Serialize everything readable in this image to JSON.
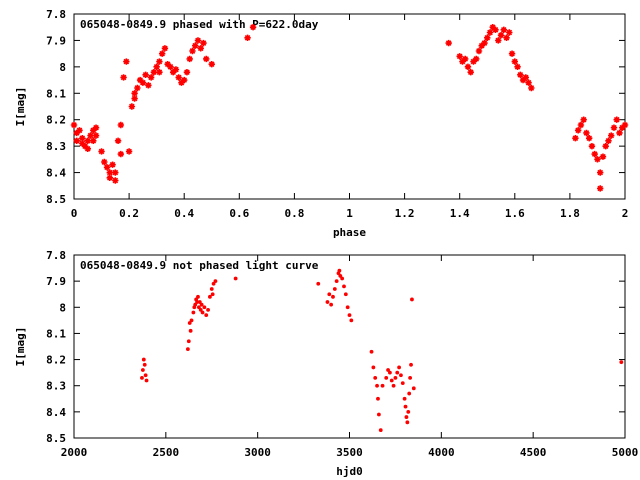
{
  "colors": {
    "points": "#ff0000",
    "frame": "#000000",
    "background": "#ffffff"
  },
  "chart_data": [
    {
      "type": "scatter",
      "title": "065048-0849.9 phased with P=622.0day",
      "xlabel": "phase",
      "ylabel": "I[mag]",
      "xlim": [
        0,
        2
      ],
      "ylim": [
        8.5,
        7.8
      ],
      "y_inverted": true,
      "grid": false,
      "xticks": [
        "0",
        "0.2",
        "0.4",
        "0.6",
        "0.8",
        "1",
        "1.2",
        "1.4",
        "1.6",
        "1.8",
        "2"
      ],
      "yticks": [
        "7.8",
        "7.9",
        "8",
        "8.1",
        "8.2",
        "8.3",
        "8.4",
        "8.5"
      ],
      "marker": "star",
      "points": [
        [
          0.0,
          8.22
        ],
        [
          0.01,
          8.25
        ],
        [
          0.01,
          8.28
        ],
        [
          0.02,
          8.24
        ],
        [
          0.03,
          8.27
        ],
        [
          0.03,
          8.29
        ],
        [
          0.04,
          8.3
        ],
        [
          0.05,
          8.28
        ],
        [
          0.05,
          8.31
        ],
        [
          0.06,
          8.26
        ],
        [
          0.07,
          8.24
        ],
        [
          0.07,
          8.28
        ],
        [
          0.08,
          8.23
        ],
        [
          0.08,
          8.26
        ],
        [
          0.1,
          8.32
        ],
        [
          0.11,
          8.36
        ],
        [
          0.12,
          8.38
        ],
        [
          0.13,
          8.4
        ],
        [
          0.13,
          8.42
        ],
        [
          0.14,
          8.37
        ],
        [
          0.15,
          8.43
        ],
        [
          0.15,
          8.4
        ],
        [
          0.16,
          8.28
        ],
        [
          0.17,
          8.22
        ],
        [
          0.17,
          8.33
        ],
        [
          0.18,
          8.04
        ],
        [
          0.19,
          7.98
        ],
        [
          0.2,
          8.32
        ],
        [
          0.21,
          8.15
        ],
        [
          0.22,
          8.12
        ],
        [
          0.22,
          8.1
        ],
        [
          0.23,
          8.08
        ],
        [
          0.24,
          8.05
        ],
        [
          0.25,
          8.06
        ],
        [
          0.26,
          8.03
        ],
        [
          0.27,
          8.07
        ],
        [
          0.28,
          8.04
        ],
        [
          0.29,
          8.02
        ],
        [
          0.3,
          8.0
        ],
        [
          0.31,
          7.98
        ],
        [
          0.31,
          8.02
        ],
        [
          0.32,
          7.95
        ],
        [
          0.33,
          7.93
        ],
        [
          0.34,
          7.99
        ],
        [
          0.35,
          8.0
        ],
        [
          0.36,
          8.02
        ],
        [
          0.37,
          8.01
        ],
        [
          0.38,
          8.04
        ],
        [
          0.39,
          8.06
        ],
        [
          0.4,
          8.05
        ],
        [
          0.41,
          8.02
        ],
        [
          0.42,
          7.97
        ],
        [
          0.43,
          7.94
        ],
        [
          0.44,
          7.92
        ],
        [
          0.45,
          7.9
        ],
        [
          0.46,
          7.93
        ],
        [
          0.47,
          7.91
        ],
        [
          0.48,
          7.97
        ],
        [
          0.5,
          7.99
        ],
        [
          0.63,
          7.89
        ],
        [
          0.65,
          7.85
        ],
        [
          1.36,
          7.91
        ],
        [
          1.4,
          7.96
        ],
        [
          1.41,
          7.98
        ],
        [
          1.42,
          7.97
        ],
        [
          1.43,
          8.0
        ],
        [
          1.44,
          8.02
        ],
        [
          1.45,
          7.98
        ],
        [
          1.46,
          7.97
        ],
        [
          1.47,
          7.94
        ],
        [
          1.48,
          7.92
        ],
        [
          1.49,
          7.91
        ],
        [
          1.5,
          7.89
        ],
        [
          1.51,
          7.87
        ],
        [
          1.52,
          7.85
        ],
        [
          1.53,
          7.86
        ],
        [
          1.54,
          7.9
        ],
        [
          1.55,
          7.88
        ],
        [
          1.56,
          7.86
        ],
        [
          1.57,
          7.89
        ],
        [
          1.58,
          7.87
        ],
        [
          1.59,
          7.95
        ],
        [
          1.6,
          7.98
        ],
        [
          1.61,
          8.0
        ],
        [
          1.62,
          8.03
        ],
        [
          1.63,
          8.05
        ],
        [
          1.64,
          8.04
        ],
        [
          1.65,
          8.06
        ],
        [
          1.66,
          8.08
        ],
        [
          1.82,
          8.27
        ],
        [
          1.83,
          8.24
        ],
        [
          1.84,
          8.22
        ],
        [
          1.85,
          8.2
        ],
        [
          1.86,
          8.25
        ],
        [
          1.87,
          8.27
        ],
        [
          1.88,
          8.3
        ],
        [
          1.89,
          8.33
        ],
        [
          1.9,
          8.35
        ],
        [
          1.91,
          8.4
        ],
        [
          1.91,
          8.46
        ],
        [
          1.92,
          8.34
        ],
        [
          1.93,
          8.3
        ],
        [
          1.94,
          8.28
        ],
        [
          1.95,
          8.26
        ],
        [
          1.96,
          8.23
        ],
        [
          1.97,
          8.2
        ],
        [
          1.98,
          8.25
        ],
        [
          1.99,
          8.23
        ],
        [
          2.0,
          8.22
        ]
      ]
    },
    {
      "type": "scatter",
      "title": "065048-0849.9 not phased light curve",
      "xlabel": "hjd0",
      "ylabel": "I[mag]",
      "xlim": [
        2000,
        5000
      ],
      "ylim": [
        8.5,
        7.8
      ],
      "y_inverted": true,
      "grid": false,
      "xticks": [
        "2000",
        "2500",
        "3000",
        "3500",
        "4000",
        "4500",
        "5000"
      ],
      "yticks": [
        "7.8",
        "7.9",
        "8",
        "8.1",
        "8.2",
        "8.3",
        "8.4",
        "8.5"
      ],
      "marker": "dot",
      "points": [
        [
          2370,
          8.27
        ],
        [
          2375,
          8.24
        ],
        [
          2380,
          8.2
        ],
        [
          2385,
          8.22
        ],
        [
          2390,
          8.26
        ],
        [
          2395,
          8.28
        ],
        [
          2620,
          8.16
        ],
        [
          2625,
          8.13
        ],
        [
          2630,
          8.06
        ],
        [
          2635,
          8.09
        ],
        [
          2640,
          8.05
        ],
        [
          2650,
          8.02
        ],
        [
          2655,
          8.0
        ],
        [
          2660,
          7.99
        ],
        [
          2665,
          7.97
        ],
        [
          2670,
          7.98
        ],
        [
          2675,
          7.96
        ],
        [
          2680,
          8.0
        ],
        [
          2685,
          7.98
        ],
        [
          2690,
          8.01
        ],
        [
          2695,
          7.99
        ],
        [
          2700,
          8.02
        ],
        [
          2710,
          8.0
        ],
        [
          2720,
          8.03
        ],
        [
          2730,
          8.01
        ],
        [
          2740,
          7.96
        ],
        [
          2750,
          7.93
        ],
        [
          2755,
          7.95
        ],
        [
          2760,
          7.91
        ],
        [
          2770,
          7.9
        ],
        [
          2880,
          7.89
        ],
        [
          3330,
          7.91
        ],
        [
          3380,
          7.98
        ],
        [
          3390,
          7.95
        ],
        [
          3400,
          7.99
        ],
        [
          3410,
          7.96
        ],
        [
          3420,
          7.93
        ],
        [
          3430,
          7.9
        ],
        [
          3440,
          7.87
        ],
        [
          3445,
          7.86
        ],
        [
          3450,
          7.88
        ],
        [
          3460,
          7.89
        ],
        [
          3470,
          7.92
        ],
        [
          3480,
          7.95
        ],
        [
          3490,
          8.0
        ],
        [
          3500,
          8.03
        ],
        [
          3510,
          8.05
        ],
        [
          3620,
          8.17
        ],
        [
          3630,
          8.23
        ],
        [
          3640,
          8.27
        ],
        [
          3650,
          8.3
        ],
        [
          3655,
          8.35
        ],
        [
          3660,
          8.41
        ],
        [
          3670,
          8.47
        ],
        [
          3680,
          8.3
        ],
        [
          3700,
          8.27
        ],
        [
          3710,
          8.24
        ],
        [
          3720,
          8.25
        ],
        [
          3730,
          8.28
        ],
        [
          3740,
          8.3
        ],
        [
          3750,
          8.27
        ],
        [
          3760,
          8.25
        ],
        [
          3770,
          8.23
        ],
        [
          3780,
          8.26
        ],
        [
          3790,
          8.29
        ],
        [
          3800,
          8.35
        ],
        [
          3805,
          8.38
        ],
        [
          3810,
          8.42
        ],
        [
          3815,
          8.44
        ],
        [
          3820,
          8.4
        ],
        [
          3825,
          8.33
        ],
        [
          3830,
          8.27
        ],
        [
          3835,
          8.22
        ],
        [
          3840,
          7.97
        ],
        [
          3850,
          8.31
        ],
        [
          4980,
          8.21
        ]
      ]
    }
  ]
}
